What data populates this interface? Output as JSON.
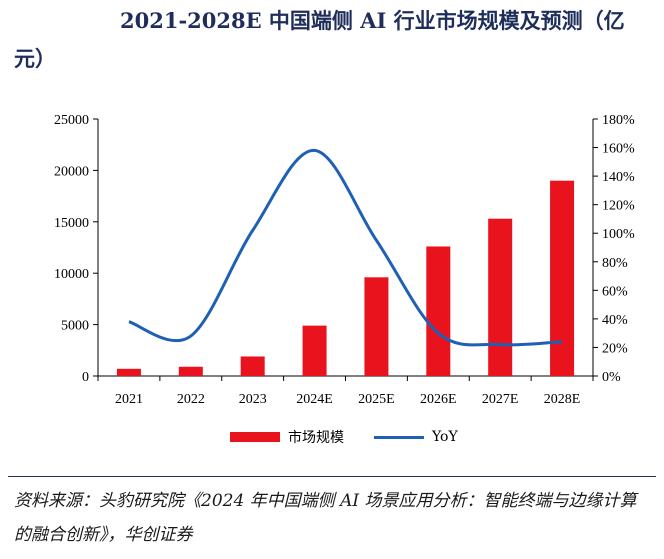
{
  "title": "2021-2028E 中国端侧 AI 行业市场规模及预测（亿元）",
  "source": "资料来源：头豹研究院《2024 年中国端侧 AI 场景应用分析：智能终端与边缘计算的融合创新》，华创证券",
  "colors": {
    "bar": "#e8131c",
    "line": "#1f5fb4",
    "title": "#1f2d5a"
  },
  "chart_data": {
    "type": "bar",
    "categories": [
      "2021",
      "2022",
      "2023",
      "2024E",
      "2025E",
      "2026E",
      "2027E",
      "2028E"
    ],
    "series": [
      {
        "name": "市场规模",
        "type": "bar",
        "axis": "left",
        "values": [
          700,
          900,
          1900,
          4900,
          9600,
          12600,
          15300,
          19000
        ]
      },
      {
        "name": "YoY",
        "type": "line",
        "axis": "right",
        "values": [
          38,
          28,
          102,
          158,
          95,
          30,
          22,
          24
        ]
      }
    ],
    "y_left": {
      "min": 0,
      "max": 25000,
      "ticks": [
        "0",
        "5000",
        "10000",
        "15000",
        "20000",
        "25000"
      ]
    },
    "y_right": {
      "min": 0,
      "max": 180,
      "ticks": [
        "0%",
        "20%",
        "40%",
        "60%",
        "80%",
        "100%",
        "120%",
        "140%",
        "160%",
        "180%"
      ]
    },
    "legend_position": "bottom",
    "grid": false
  }
}
